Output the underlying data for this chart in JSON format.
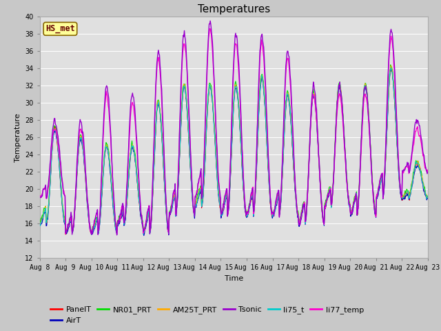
{
  "title": "Temperatures",
  "xlabel": "Time",
  "ylabel": "Temperature",
  "ylim": [
    12,
    40
  ],
  "yticks": [
    12,
    14,
    16,
    18,
    20,
    22,
    24,
    26,
    28,
    30,
    32,
    34,
    36,
    38,
    40
  ],
  "start_day": 8,
  "end_day": 23,
  "fig_bg_color": "#c8c8c8",
  "plot_bg_color": "#e0e0e0",
  "series": {
    "PanelT": {
      "color": "#ff0000",
      "lw": 0.8,
      "zorder": 3
    },
    "AirT": {
      "color": "#0000bb",
      "lw": 0.8,
      "zorder": 3
    },
    "NR01_PRT": {
      "color": "#00dd00",
      "lw": 0.8,
      "zorder": 3
    },
    "AM25T_PRT": {
      "color": "#ffaa00",
      "lw": 0.8,
      "zorder": 3
    },
    "Tsonic": {
      "color": "#9900cc",
      "lw": 1.0,
      "zorder": 5
    },
    "li75_t": {
      "color": "#00cccc",
      "lw": 0.8,
      "zorder": 3
    },
    "li77_temp": {
      "color": "#ff00cc",
      "lw": 1.0,
      "zorder": 4
    }
  },
  "annotation_text": "HS_met",
  "annotation_color": "#660000",
  "annotation_bg": "#ffff99",
  "annotation_border": "#886600",
  "title_fontsize": 11,
  "label_fontsize": 8,
  "tick_fontsize": 7,
  "legend_fontsize": 8
}
